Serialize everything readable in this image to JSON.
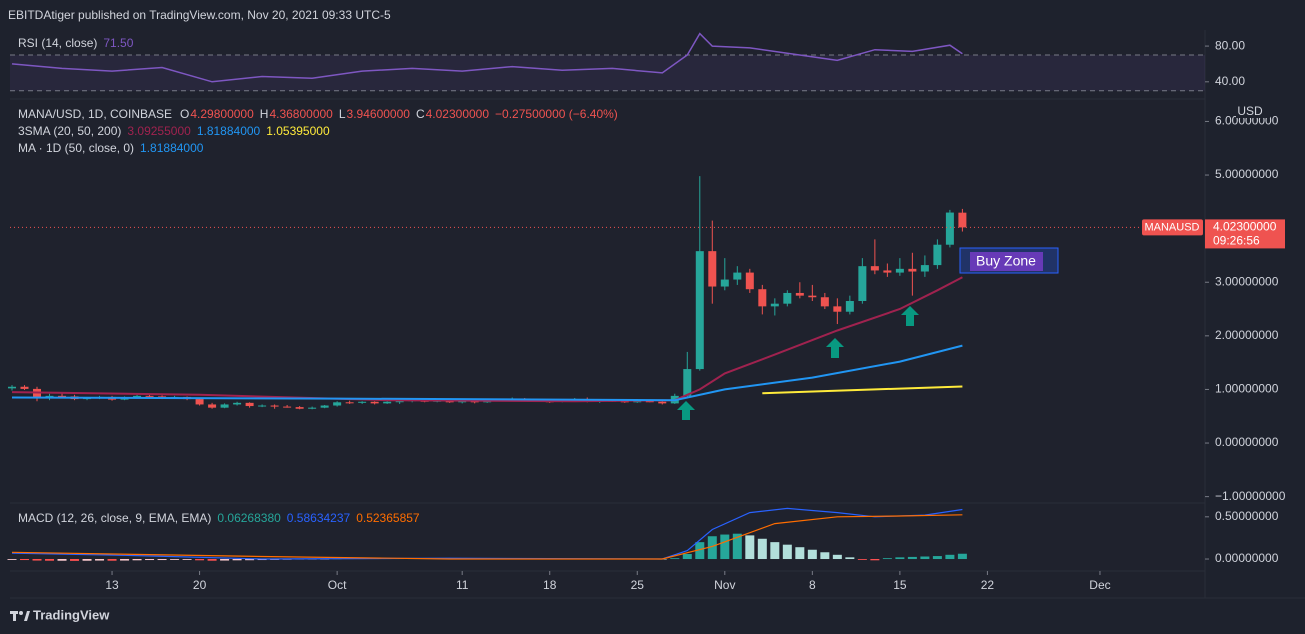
{
  "header": {
    "publisher": "EBITDAtiger published on TradingView.com, Nov 20, 2021 09:33 UTC-5"
  },
  "footer": {
    "brand": "TradingView"
  },
  "chart_data": [
    {
      "type": "candlestick",
      "title": "MANA/USD, 1D, COINBASE",
      "legend_ohlc": [
        {
          "key": "O",
          "value": "4.29800000"
        },
        {
          "key": "H",
          "value": "4.36800000"
        },
        {
          "key": "L",
          "value": "3.94600000"
        },
        {
          "key": "C",
          "value": "4.02300000"
        }
      ],
      "change": "−0.27500000 (−6.40%)",
      "up_color": "#26a69a",
      "down_color": "#ef5350",
      "x": [
        "2021-09-05",
        "2021-09-06",
        "2021-09-07",
        "2021-09-08",
        "2021-09-09",
        "2021-09-10",
        "2021-09-11",
        "2021-09-12",
        "2021-09-13",
        "2021-09-14",
        "2021-09-15",
        "2021-09-16",
        "2021-09-17",
        "2021-09-18",
        "2021-09-19",
        "2021-09-20",
        "2021-09-21",
        "2021-09-22",
        "2021-09-23",
        "2021-09-24",
        "2021-09-25",
        "2021-09-26",
        "2021-09-27",
        "2021-09-28",
        "2021-09-29",
        "2021-09-30",
        "2021-10-01",
        "2021-10-02",
        "2021-10-03",
        "2021-10-04",
        "2021-10-05",
        "2021-10-06",
        "2021-10-07",
        "2021-10-08",
        "2021-10-09",
        "2021-10-10",
        "2021-10-11",
        "2021-10-12",
        "2021-10-13",
        "2021-10-14",
        "2021-10-15",
        "2021-10-16",
        "2021-10-17",
        "2021-10-18",
        "2021-10-19",
        "2021-10-20",
        "2021-10-21",
        "2021-10-22",
        "2021-10-23",
        "2021-10-24",
        "2021-10-25",
        "2021-10-26",
        "2021-10-27",
        "2021-10-28",
        "2021-10-29",
        "2021-10-30",
        "2021-10-31",
        "2021-11-01",
        "2021-11-02",
        "2021-11-03",
        "2021-11-04",
        "2021-11-05",
        "2021-11-06",
        "2021-11-07",
        "2021-11-08",
        "2021-11-09",
        "2021-11-10",
        "2021-11-11",
        "2021-11-12",
        "2021-11-13",
        "2021-11-14",
        "2021-11-15",
        "2021-11-16",
        "2021-11-17",
        "2021-11-18",
        "2021-11-19",
        "2021-11-20"
      ],
      "open": [
        1.02,
        1.05,
        1.01,
        0.85,
        0.88,
        0.87,
        0.82,
        0.84,
        0.86,
        0.81,
        0.85,
        0.88,
        0.87,
        0.84,
        0.86,
        0.82,
        0.72,
        0.66,
        0.72,
        0.75,
        0.69,
        0.7,
        0.68,
        0.67,
        0.64,
        0.66,
        0.7,
        0.76,
        0.75,
        0.77,
        0.74,
        0.77,
        0.78,
        0.8,
        0.77,
        0.79,
        0.76,
        0.78,
        0.76,
        0.79,
        0.81,
        0.83,
        0.8,
        0.78,
        0.77,
        0.79,
        0.82,
        0.77,
        0.79,
        0.78,
        0.76,
        0.78,
        0.77,
        0.74,
        0.88,
        1.38,
        3.58,
        2.92,
        3.05,
        3.18,
        2.87,
        2.55,
        2.6,
        2.8,
        2.75,
        2.72,
        2.55,
        2.45,
        2.65,
        3.3,
        3.22,
        3.18,
        3.25,
        3.2,
        3.32,
        3.7,
        4.298
      ],
      "high": [
        1.08,
        1.08,
        1.05,
        0.92,
        0.93,
        0.9,
        0.86,
        0.88,
        0.88,
        0.87,
        0.9,
        0.91,
        0.89,
        0.88,
        0.87,
        0.83,
        0.75,
        0.74,
        0.77,
        0.76,
        0.72,
        0.72,
        0.71,
        0.69,
        0.68,
        0.71,
        0.78,
        0.79,
        0.78,
        0.78,
        0.78,
        0.8,
        0.82,
        0.82,
        0.8,
        0.81,
        0.79,
        0.8,
        0.8,
        0.83,
        0.85,
        0.84,
        0.82,
        0.81,
        0.8,
        0.84,
        0.85,
        0.8,
        0.81,
        0.8,
        0.8,
        0.8,
        0.78,
        0.92,
        1.7,
        4.98,
        4.15,
        3.45,
        3.3,
        3.25,
        2.95,
        2.7,
        2.85,
        3.0,
        2.95,
        2.8,
        2.7,
        2.75,
        3.45,
        3.8,
        3.35,
        3.45,
        3.55,
        3.5,
        3.8,
        4.35,
        4.368
      ],
      "low": [
        0.98,
        0.99,
        0.78,
        0.8,
        0.84,
        0.8,
        0.8,
        0.82,
        0.79,
        0.8,
        0.83,
        0.85,
        0.82,
        0.83,
        0.8,
        0.7,
        0.64,
        0.65,
        0.7,
        0.66,
        0.67,
        0.64,
        0.66,
        0.63,
        0.63,
        0.65,
        0.68,
        0.73,
        0.73,
        0.72,
        0.73,
        0.73,
        0.76,
        0.76,
        0.76,
        0.75,
        0.74,
        0.74,
        0.75,
        0.78,
        0.78,
        0.79,
        0.77,
        0.75,
        0.76,
        0.78,
        0.76,
        0.75,
        0.77,
        0.75,
        0.75,
        0.76,
        0.72,
        0.73,
        0.86,
        1.35,
        2.6,
        2.85,
        2.95,
        2.8,
        2.4,
        2.38,
        2.55,
        2.7,
        2.65,
        2.5,
        2.22,
        2.4,
        2.6,
        3.15,
        3.1,
        3.12,
        2.75,
        3.1,
        3.25,
        3.65,
        3.946
      ],
      "close": [
        1.05,
        1.01,
        0.85,
        0.88,
        0.87,
        0.82,
        0.84,
        0.86,
        0.81,
        0.85,
        0.88,
        0.87,
        0.84,
        0.86,
        0.82,
        0.72,
        0.66,
        0.72,
        0.75,
        0.69,
        0.7,
        0.68,
        0.67,
        0.64,
        0.66,
        0.7,
        0.76,
        0.75,
        0.77,
        0.74,
        0.77,
        0.78,
        0.8,
        0.77,
        0.79,
        0.76,
        0.78,
        0.76,
        0.79,
        0.81,
        0.83,
        0.8,
        0.78,
        0.77,
        0.79,
        0.82,
        0.77,
        0.79,
        0.78,
        0.76,
        0.78,
        0.77,
        0.74,
        0.88,
        1.38,
        3.58,
        2.92,
        3.05,
        3.18,
        2.87,
        2.55,
        2.6,
        2.8,
        2.75,
        2.72,
        2.55,
        2.45,
        2.65,
        3.3,
        3.22,
        3.18,
        3.25,
        3.2,
        3.32,
        3.7,
        4.3,
        4.023
      ],
      "overlay_group": "3SMA (20, 50, 200)",
      "overlays": [
        {
          "color": "#a0224f",
          "value_label": "3.09255000",
          "x": [
            "2021-09-05",
            "2021-09-20",
            "2021-10-05",
            "2021-10-20",
            "2021-10-28",
            "2021-10-30",
            "2021-11-01",
            "2021-11-05",
            "2021-11-10",
            "2021-11-15",
            "2021-11-18",
            "2021-11-20"
          ],
          "values": [
            0.95,
            0.9,
            0.8,
            0.78,
            0.8,
            1.0,
            1.3,
            1.65,
            2.1,
            2.5,
            2.85,
            3.09255
          ]
        },
        {
          "color": "#2196f3",
          "value_label": "1.81884000",
          "x": [
            "2021-09-05",
            "2021-10-01",
            "2021-10-28",
            "2021-11-01",
            "2021-11-08",
            "2021-11-15",
            "2021-11-20"
          ],
          "values": [
            0.85,
            0.83,
            0.8,
            1.0,
            1.22,
            1.52,
            1.81884
          ]
        },
        {
          "color": "#ffeb3b",
          "value_label": "1.05395000",
          "x": [
            "2021-11-04",
            "2021-11-20"
          ],
          "values": [
            0.93,
            1.05395
          ]
        }
      ],
      "ma_legend": {
        "name": "MA · 1D (50, close, 0)",
        "value_label": "1.81884000",
        "color": "#2196f3"
      },
      "last_price": {
        "symbol": "MANAUSD",
        "value": 4.023,
        "label": "4.02300000",
        "countdown": "09:26:56"
      },
      "annotation": {
        "text": "Buy Zone"
      },
      "y_axis_label": "USD",
      "xlim": [
        "2021-09-05",
        "2021-12-09"
      ],
      "xticks": [
        {
          "value": "2021-09-13",
          "label": "13"
        },
        {
          "value": "2021-09-20",
          "label": "20"
        },
        {
          "value": "2021-10-01",
          "label": "Oct"
        },
        {
          "value": "2021-10-11",
          "label": "11"
        },
        {
          "value": "2021-10-18",
          "label": "18"
        },
        {
          "value": "2021-10-25",
          "label": "25"
        },
        {
          "value": "2021-11-01",
          "label": "Nov"
        },
        {
          "value": "2021-11-08",
          "label": "8"
        },
        {
          "value": "2021-11-15",
          "label": "15"
        },
        {
          "value": "2021-11-22",
          "label": "22"
        },
        {
          "value": "2021-12-01",
          "label": "Dec"
        }
      ],
      "ylim": [
        -1.1,
        6.4
      ],
      "yticks": [
        {
          "value": 6,
          "label": "6.00000000"
        },
        {
          "value": 5,
          "label": "5.00000000"
        },
        {
          "value": 4,
          "label": "4.00000000"
        },
        {
          "value": 3,
          "label": "3.00000000"
        },
        {
          "value": 2,
          "label": "2.00000000"
        },
        {
          "value": 1,
          "label": "1.00000000"
        },
        {
          "value": 0,
          "label": "0.00000000"
        },
        {
          "value": -1,
          "label": "−1.00000000"
        }
      ],
      "grid": false
    },
    {
      "type": "line",
      "title": "RSI (14, close)",
      "value_label": "71.50",
      "color": "#7e57c2",
      "x": [
        "2021-09-05",
        "2021-09-09",
        "2021-09-13",
        "2021-09-17",
        "2021-09-21",
        "2021-09-25",
        "2021-09-29",
        "2021-10-03",
        "2021-10-07",
        "2021-10-11",
        "2021-10-15",
        "2021-10-19",
        "2021-10-23",
        "2021-10-27",
        "2021-10-29",
        "2021-10-30",
        "2021-10-31",
        "2021-11-03",
        "2021-11-06",
        "2021-11-10",
        "2021-11-13",
        "2021-11-16",
        "2021-11-19",
        "2021-11-20"
      ],
      "values": [
        60,
        55,
        52,
        56,
        40,
        46,
        44,
        52,
        55,
        52,
        57,
        53,
        55,
        50,
        70,
        94,
        80,
        78,
        72,
        64,
        76,
        74,
        81,
        71.5
      ],
      "bands": [
        70,
        30
      ],
      "ylim": [
        23,
        98
      ],
      "yticks": [
        {
          "value": 80,
          "label": "80.00"
        },
        {
          "value": 40,
          "label": "40.00"
        }
      ]
    },
    {
      "type": "macd",
      "title": "MACD (12, 26, close, 9, EMA, EMA)",
      "hist_label": "0.06268380",
      "macd_label": "0.58634237",
      "signal_label": "0.52365857",
      "hist_colors": [
        "#26a69a",
        "#b2dfdb",
        "#ff5252",
        "#ffcdd2"
      ],
      "histogram": [
        -0.01,
        -0.012,
        -0.018,
        -0.02,
        -0.02,
        -0.022,
        -0.02,
        -0.018,
        -0.02,
        -0.018,
        -0.015,
        -0.012,
        -0.012,
        -0.01,
        -0.01,
        -0.015,
        -0.02,
        -0.018,
        -0.015,
        -0.014,
        -0.012,
        -0.01,
        -0.008,
        -0.006,
        -0.004,
        -0.002,
        0.004,
        0.006,
        0.008,
        0.009,
        0.01,
        0.011,
        0.012,
        0.012,
        0.011,
        0.01,
        0.01,
        0.009,
        0.009,
        0.008,
        0.008,
        0.007,
        0.006,
        0.005,
        0.005,
        0.004,
        0.003,
        0.003,
        0.002,
        0.002,
        0.001,
        0.001,
        0.0,
        0.01,
        0.06,
        0.2,
        0.27,
        0.29,
        0.3,
        0.28,
        0.24,
        0.2,
        0.17,
        0.14,
        0.11,
        0.08,
        0.05,
        0.02,
        -0.01,
        -0.015,
        0.01,
        0.02,
        0.025,
        0.03,
        0.035,
        0.05,
        0.0626838
      ],
      "macd": {
        "color": "#2962ff",
        "x": [
          "2021-09-05",
          "2021-09-15",
          "2021-09-25",
          "2021-10-10",
          "2021-10-27",
          "2021-10-29",
          "2021-10-31",
          "2021-11-03",
          "2021-11-06",
          "2021-11-10",
          "2021-11-13",
          "2021-11-17",
          "2021-11-20"
        ],
        "values": [
          0.07,
          0.04,
          0.0,
          0.01,
          0.0,
          0.1,
          0.35,
          0.55,
          0.6,
          0.55,
          0.5,
          0.52,
          0.58634237
        ]
      },
      "signal": {
        "color": "#ff6d00",
        "x": [
          "2021-09-05",
          "2021-09-25",
          "2021-10-10",
          "2021-10-27",
          "2021-10-31",
          "2021-11-05",
          "2021-11-10",
          "2021-11-15",
          "2021-11-20"
        ],
        "values": [
          0.08,
          0.03,
          0.0,
          0.0,
          0.15,
          0.42,
          0.5,
          0.51,
          0.52365857
        ]
      },
      "ylim": [
        -0.13,
        0.64
      ],
      "yticks": [
        {
          "value": 0.5,
          "label": "0.50000000"
        },
        {
          "value": 0,
          "label": "0.00000000"
        }
      ]
    }
  ]
}
